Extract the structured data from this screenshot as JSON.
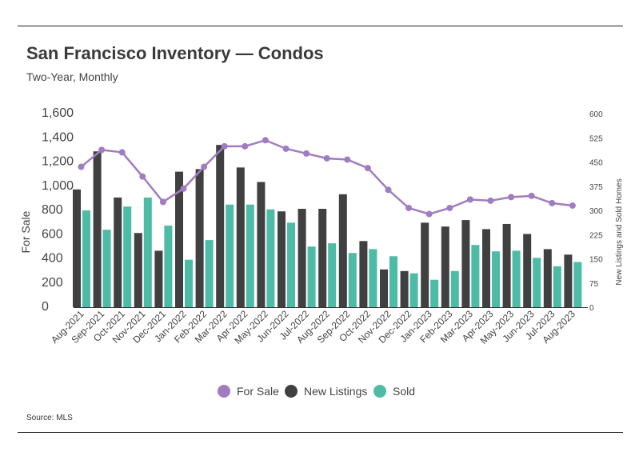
{
  "header": {
    "title": "San Francisco Inventory — Condos",
    "subtitle": "Two-Year, Monthly"
  },
  "footer": {
    "source": "Source: MLS"
  },
  "colors": {
    "for_sale": "#a07cc0",
    "new_listings": "#404040",
    "sold": "#4dbba6"
  },
  "chart_data": {
    "type": "bar",
    "categories": [
      "Aug-2021",
      "Sep-2021",
      "Oct-2021",
      "Nov-2021",
      "Dec-2021",
      "Jan-2022",
      "Feb-2022",
      "Mar-2022",
      "Apr-2022",
      "May-2022",
      "Jun-2022",
      "Jul-2022",
      "Aug-2022",
      "Sep-2022",
      "Oct-2022",
      "Nov-2022",
      "Dec-2022",
      "Jan-2023",
      "Feb-2023",
      "Mar-2023",
      "Apr-2023",
      "May-2023",
      "Jun-2023",
      "Jul-2023",
      "Aug-2023"
    ],
    "y_left": {
      "label": "For Sale",
      "ticks": [
        "1,600",
        "1,400",
        "1,200",
        "1,000",
        "800",
        "600",
        "400",
        "200",
        "0"
      ],
      "range": [
        0,
        1600
      ]
    },
    "y_right": {
      "label": "New Listings and Sold Homes",
      "ticks": [
        "600",
        "525",
        "450",
        "375",
        "300",
        "225",
        "150",
        "75",
        "0"
      ],
      "range": [
        0,
        600
      ]
    },
    "series": [
      {
        "name": "For Sale",
        "type": "line",
        "axis": "left",
        "values": [
          1160,
          1300,
          1280,
          1080,
          870,
          980,
          1160,
          1330,
          1330,
          1380,
          1310,
          1270,
          1230,
          1220,
          1150,
          970,
          820,
          770,
          820,
          890,
          880,
          910,
          920,
          860,
          840
        ]
      },
      {
        "name": "New Listings",
        "type": "bar",
        "axis": "right",
        "values": [
          365,
          483,
          340,
          230,
          175,
          420,
          428,
          503,
          433,
          388,
          297,
          305,
          305,
          350,
          205,
          117,
          112,
          262,
          250,
          270,
          242,
          258,
          227,
          180,
          163
        ]
      },
      {
        "name": "Sold",
        "type": "bar",
        "axis": "right",
        "values": [
          300,
          240,
          312,
          340,
          253,
          147,
          208,
          318,
          318,
          303,
          262,
          188,
          198,
          168,
          180,
          158,
          105,
          85,
          112,
          193,
          173,
          175,
          153,
          127,
          140
        ]
      }
    ],
    "legend": [
      "For Sale",
      "New Listings",
      "Sold"
    ],
    "legend_position": "bottom-center",
    "grid": false
  }
}
